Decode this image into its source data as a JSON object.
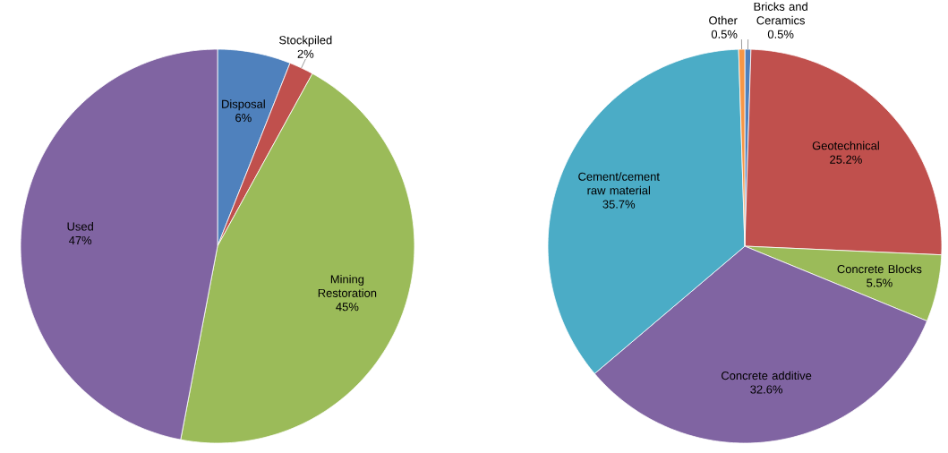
{
  "chart_data": [
    {
      "type": "pie",
      "categories": [
        "Disposal",
        "Stockpiled",
        "Mining Restoration",
        "Used"
      ],
      "values": [
        6,
        2,
        45,
        47
      ],
      "value_labels": [
        "6%",
        "2%",
        "45%",
        "47%"
      ],
      "colors": [
        "#4f81bd",
        "#c0504d",
        "#9bbb59",
        "#8064a2"
      ]
    },
    {
      "type": "pie",
      "categories": [
        "Bricks and Ceramics",
        "Geotechnical",
        "Concrete Blocks",
        "Concrete additive",
        "Cement/cement raw material",
        "Other"
      ],
      "values": [
        0.5,
        25.2,
        5.5,
        32.6,
        35.7,
        0.5
      ],
      "value_labels": [
        "0.5%",
        "25.2%",
        "5.5%",
        "32.6%",
        "35.7%",
        "0.5%"
      ],
      "colors": [
        "#4f81bd",
        "#c0504d",
        "#9bbb59",
        "#8064a2",
        "#4bacc6",
        "#f79646"
      ]
    }
  ]
}
